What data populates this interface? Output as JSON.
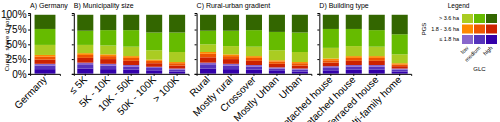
{
  "chart_data": [
    {
      "type": "bar",
      "stacked": true,
      "title": "A) Germany",
      "ylabel": "Cumul. share of pop.",
      "categories": [
        "Germany"
      ],
      "series": [
        {
          "color": "#3300AA",
          "values": [
            8
          ]
        },
        {
          "color": "#5533BB",
          "values": [
            6
          ]
        },
        {
          "color": "#8866CC",
          "values": [
            3
          ]
        },
        {
          "color": "#CC2200",
          "values": [
            7
          ]
        },
        {
          "color": "#EE5500",
          "values": [
            5
          ]
        },
        {
          "color": "#FF8800",
          "values": [
            3
          ]
        },
        {
          "color": "#AACC22",
          "values": [
            17
          ]
        },
        {
          "color": "#66BB00",
          "values": [
            27
          ]
        },
        {
          "color": "#336600",
          "values": [
            24
          ]
        }
      ],
      "ylim": [
        0,
        103
      ],
      "yticks": [
        {
          "value": 0,
          "label": "0%"
        },
        {
          "value": 25,
          "label": "25%"
        },
        {
          "value": 50,
          "label": "50%"
        },
        {
          "value": 75,
          "label": "75%"
        },
        {
          "value": 100,
          "label": "100%"
        }
      ]
    },
    {
      "type": "bar",
      "stacked": true,
      "title": "B) Municipality size",
      "categories": [
        "≤ 5K",
        "5K - 10K",
        "10K - 50K",
        "50K - 100K",
        "> 100K"
      ],
      "series": [
        {
          "color": "#3300AA",
          "values": [
            9,
            8,
            7,
            6,
            4
          ]
        },
        {
          "color": "#5533BB",
          "values": [
            6,
            6,
            5,
            4,
            3
          ]
        },
        {
          "color": "#8866CC",
          "values": [
            4,
            3,
            3,
            2,
            2
          ]
        },
        {
          "color": "#CC2200",
          "values": [
            8,
            8,
            7,
            6,
            5
          ]
        },
        {
          "color": "#EE5500",
          "values": [
            5,
            5,
            5,
            4,
            4
          ]
        },
        {
          "color": "#FF8800",
          "values": [
            3,
            3,
            3,
            2,
            2
          ]
        },
        {
          "color": "#AACC22",
          "values": [
            14,
            15,
            16,
            16,
            17
          ]
        },
        {
          "color": "#66BB00",
          "values": [
            24,
            26,
            28,
            30,
            33
          ]
        },
        {
          "color": "#336600",
          "values": [
            27,
            26,
            26,
            30,
            30
          ]
        }
      ],
      "ylim": [
        0,
        103
      ],
      "yticks": [
        0,
        25,
        50,
        75,
        100
      ],
      "tick_labels": "x"
    },
    {
      "type": "bar",
      "stacked": true,
      "title": "C) Rural-urban gradient",
      "categories": [
        "Rural",
        "Mostly rural",
        "Crossover",
        "Mostly Urban",
        "Urban"
      ],
      "series": [
        {
          "color": "#3300AA",
          "values": [
            9,
            8,
            7,
            5,
            4
          ]
        },
        {
          "color": "#5533BB",
          "values": [
            6,
            6,
            5,
            4,
            3
          ]
        },
        {
          "color": "#8866CC",
          "values": [
            4,
            3,
            3,
            2,
            2
          ]
        },
        {
          "color": "#CC2200",
          "values": [
            9,
            8,
            7,
            6,
            5
          ]
        },
        {
          "color": "#EE5500",
          "values": [
            6,
            5,
            5,
            4,
            4
          ]
        },
        {
          "color": "#FF8800",
          "values": [
            3,
            3,
            3,
            2,
            2
          ]
        },
        {
          "color": "#AACC22",
          "values": [
            13,
            14,
            16,
            17,
            17
          ]
        },
        {
          "color": "#66BB00",
          "values": [
            23,
            26,
            28,
            31,
            33
          ]
        },
        {
          "color": "#336600",
          "values": [
            27,
            27,
            26,
            29,
            30
          ]
        }
      ],
      "ylim": [
        0,
        103
      ],
      "yticks": [
        0,
        25,
        50,
        75,
        100
      ],
      "tick_labels": "x"
    },
    {
      "type": "bar",
      "stacked": true,
      "title": "D) Building type",
      "categories": [
        "Detached house",
        "Semi-detached house",
        "Terraced house",
        "Multi-family home"
      ],
      "series": [
        {
          "color": "#3300AA",
          "values": [
            6,
            7,
            7,
            4
          ]
        },
        {
          "color": "#5533BB",
          "values": [
            4,
            5,
            5,
            3
          ]
        },
        {
          "color": "#8866CC",
          "values": [
            3,
            3,
            3,
            2
          ]
        },
        {
          "color": "#CC2200",
          "values": [
            6,
            7,
            7,
            4
          ]
        },
        {
          "color": "#EE5500",
          "values": [
            4,
            5,
            5,
            3
          ]
        },
        {
          "color": "#FF8800",
          "values": [
            3,
            3,
            3,
            2
          ]
        },
        {
          "color": "#AACC22",
          "values": [
            18,
            17,
            16,
            15
          ]
        },
        {
          "color": "#66BB00",
          "values": [
            32,
            29,
            28,
            34
          ]
        },
        {
          "color": "#336600",
          "values": [
            24,
            24,
            26,
            33
          ]
        }
      ],
      "ylim": [
        0,
        103
      ],
      "yticks": [
        0,
        25,
        50,
        75,
        100
      ],
      "tick_labels": "x"
    },
    {
      "type": "legend",
      "title": "Legend",
      "ylabel": "PGS",
      "xlabel": "GLC",
      "y": [
        "> 3.6 ha",
        "1.8 - 3.6 ha",
        "≤ 1.8 ha"
      ],
      "x": [
        "low",
        "medium",
        "high"
      ],
      "colors": [
        [
          "#AACC22",
          "#66BB00",
          "#336600"
        ],
        [
          "#FF8800",
          "#EE5500",
          "#CC2200"
        ],
        [
          "#8866CC",
          "#5533BB",
          "#3300AA"
        ]
      ]
    }
  ]
}
